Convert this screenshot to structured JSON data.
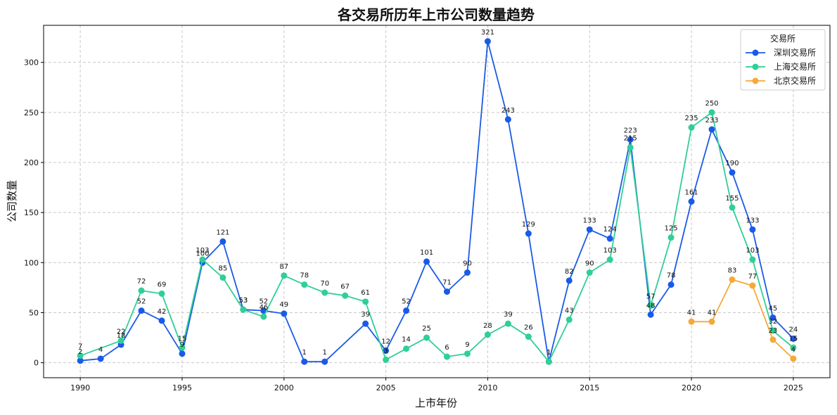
{
  "chart_data": {
    "type": "line",
    "title": "各交易所历年上市公司数量趋势",
    "xlabel": "上市年份",
    "ylabel": "公司数量",
    "xlim": [
      1988.2,
      2026.8
    ],
    "ylim": [
      -15,
      337
    ],
    "xticks": [
      1990,
      1995,
      2000,
      2005,
      2010,
      2015,
      2020,
      2025
    ],
    "yticks": [
      0,
      50,
      100,
      150,
      200,
      250,
      300
    ],
    "grid": true,
    "legend": {
      "title": "交易所",
      "placement": "top-right"
    },
    "series": [
      {
        "name": "深圳交易所",
        "color": "#1a5ae8",
        "x": [
          1990,
          1991,
          1992,
          1993,
          1994,
          1995,
          1996,
          1997,
          1998,
          1999,
          2000,
          2001,
          2002,
          2004,
          2005,
          2006,
          2007,
          2008,
          2009,
          2010,
          2011,
          2012,
          2013,
          2014,
          2015,
          2016,
          2017,
          2018,
          2019,
          2020,
          2021,
          2022,
          2023,
          2024,
          2025
        ],
        "values": [
          2,
          4,
          18,
          52,
          42,
          9,
          100,
          121,
          53,
          52,
          49,
          1,
          1,
          39,
          12,
          52,
          101,
          71,
          90,
          321,
          243,
          129,
          1,
          82,
          133,
          124,
          223,
          48,
          78,
          161,
          233,
          190,
          133,
          45,
          24
        ]
      },
      {
        "name": "上海交易所",
        "color": "#2fcf96",
        "x": [
          1990,
          1992,
          1993,
          1994,
          1995,
          1996,
          1997,
          1998,
          1999,
          2000,
          2001,
          2002,
          2003,
          2004,
          2005,
          2006,
          2007,
          2008,
          2009,
          2010,
          2011,
          2012,
          2013,
          2014,
          2015,
          2016,
          2017,
          2018,
          2019,
          2020,
          2021,
          2022,
          2023,
          2024,
          2025
        ],
        "values": [
          7,
          22,
          72,
          69,
          15,
          103,
          85,
          53,
          46,
          87,
          78,
          70,
          67,
          61,
          3,
          14,
          25,
          6,
          9,
          28,
          39,
          26,
          1,
          43,
          90,
          103,
          215,
          57,
          125,
          235,
          250,
          155,
          103,
          32,
          15
        ]
      },
      {
        "name": "北京交易所",
        "color": "#f5a93a",
        "x": [
          2020,
          2021,
          2022,
          2023,
          2024,
          2025
        ],
        "values": [
          41,
          41,
          83,
          77,
          23,
          4
        ]
      }
    ]
  }
}
